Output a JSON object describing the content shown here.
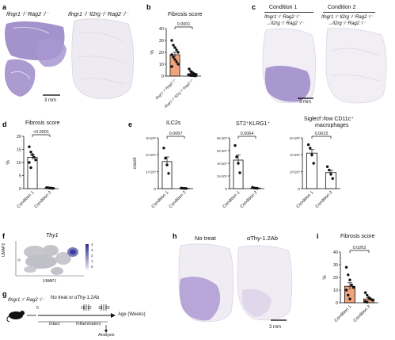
{
  "panels": {
    "a": {
      "letter": "a",
      "left_label": "Ifngr1⁻/⁻Rag2⁻/⁻",
      "right_label": "Ifngr1⁻/⁻Il2rg⁻/⁻Rag2⁻/⁻",
      "scale": "3 mm"
    },
    "b": {
      "letter": "b",
      "title": "Fibrosis score",
      "pvalue": "0.0001",
      "ylabel": "%",
      "xlabels": [
        "Ifngr1⁻/⁻Rag2⁻/⁻",
        "Ifngr1⁻/⁻Il2rg⁻/⁻Rag2⁻/⁻"
      ]
    },
    "c": {
      "letter": "c",
      "cond1": "Condition 1",
      "cond2": "Condition 2",
      "cond1_line1": "Ifngr1⁻/⁻Rag2⁻/⁻",
      "cond1_line2": "→Il2rg⁻/⁻Rag2⁻/⁻",
      "cond2_line1": "Ifngr1⁻/⁻Il2rg⁻/⁻Rag2⁻/⁻",
      "cond2_line2": "→Il2rg⁻/⁻Rag2⁻/⁻",
      "scale": "3 mm"
    },
    "d": {
      "letter": "d",
      "title": "Fibrosis score",
      "pvalue": "<0.0001",
      "ylabel": "%",
      "xlabels": [
        "Condition 1",
        "Condition 2"
      ]
    },
    "e": {
      "letter": "e",
      "ylabel": "count",
      "sub": [
        {
          "title": "ILC2s",
          "pvalue": "0.0067",
          "xlabels": [
            "Condition 1",
            "Condition 2"
          ]
        },
        {
          "title": "ST2⁺KLRG1⁺",
          "pvalue": "0.0064",
          "xlabels": [
            "Condition 1",
            "Condition 2"
          ]
        },
        {
          "title": "Siglecf⁻/lowCD11c⁺ macrophages",
          "title_line1": "Siglecf⁻⁄low CD11c⁺",
          "title_line2": "macrophages",
          "pvalue": "0.0615",
          "xlabels": [
            "Condition 1",
            "Condition 2"
          ]
        }
      ]
    },
    "f": {
      "letter": "f",
      "gene": "Thy1",
      "xaxis": "UMAP1",
      "yaxis": "UMAP2",
      "legend_ticks": [
        "4",
        "3",
        "2",
        "1",
        "0"
      ]
    },
    "g": {
      "letter": "g",
      "mouse_label": "Ifngr1⁻/⁻Rag2⁻/⁻",
      "treatment": "No treat or αThy-1.2Ab",
      "age_label": "Age (Weeks)",
      "intact": "Intact",
      "inflammatory": "Inflammatory",
      "analysis": "Analysis",
      "ticks": [
        "0",
        "10",
        "12",
        "18",
        "20"
      ]
    },
    "h": {
      "letter": "h",
      "left_label": "No treat",
      "right_label": "αThy-1.2Ab",
      "scale": "3 mm"
    },
    "i": {
      "letter": "i",
      "title": "Fibrosis score",
      "pvalue": "0.0262",
      "ylabel": "%",
      "xlabels": [
        "Condition 1",
        "Condition 2"
      ]
    }
  },
  "chart_data": [
    {
      "panel": "b",
      "type": "bar",
      "title": "Fibrosis score",
      "ylabel": "%",
      "ylim": [
        0,
        40
      ],
      "yticks": [
        0,
        10,
        20,
        30,
        40
      ],
      "categories": [
        "Ifngr1-/-Rag2-/-",
        "Ifngr1-/-Il2rg-/-Rag2-/-"
      ],
      "values": [
        18,
        2
      ],
      "points": [
        [
          30,
          26,
          24,
          22,
          20,
          18,
          16,
          14,
          12,
          10,
          8
        ],
        [
          6,
          4,
          3,
          2,
          1.5,
          1,
          0.5,
          0.5,
          0.3,
          0.2
        ]
      ],
      "pvalue": "0.0001",
      "bar_colors": [
        "#f0a47d",
        "#f0a47d"
      ]
    },
    {
      "panel": "d",
      "type": "bar",
      "title": "Fibrosis score",
      "ylabel": "%",
      "ylim": [
        0,
        20
      ],
      "yticks": [
        0,
        5,
        10,
        15,
        20
      ],
      "categories": [
        "Condition 1",
        "Condition 2"
      ],
      "values": [
        12,
        0.3
      ],
      "points": [
        [
          16,
          14,
          13,
          12,
          11,
          10,
          8
        ],
        [
          0.4,
          0.3,
          0.2,
          0.2,
          0.1
        ]
      ],
      "pvalue": "<0.0001",
      "bar_colors": [
        "#ffffff",
        "#ffffff"
      ]
    },
    {
      "panel": "e1",
      "type": "bar",
      "title": "ILC2s",
      "ylabel": "count",
      "ylim": [
        0,
        300000
      ],
      "ytick_labels": [
        "0",
        "1×10⁵",
        "2×10⁵",
        "3×10⁵"
      ],
      "yticks": [
        0,
        100000,
        200000,
        300000
      ],
      "categories": [
        "Condition 1",
        "Condition 2"
      ],
      "values": [
        160000,
        2000
      ],
      "points": [
        [
          240000,
          180000,
          140000,
          90000
        ],
        [
          3000,
          2000,
          1500,
          1000
        ]
      ],
      "pvalue": "0.0067"
    },
    {
      "panel": "e2",
      "type": "bar",
      "title": "ST2+KLRG1+",
      "ylim": [
        0,
        80000
      ],
      "ytick_labels": [
        "0",
        "2×10⁴",
        "4×10⁴",
        "6×10⁴",
        "8×10⁴"
      ],
      "yticks": [
        0,
        20000,
        40000,
        60000,
        80000
      ],
      "categories": [
        "Condition 1",
        "Condition 2"
      ],
      "values": [
        45000,
        1000
      ],
      "points": [
        [
          68000,
          50000,
          40000,
          25000
        ],
        [
          2000,
          1000,
          800,
          500
        ]
      ],
      "pvalue": "0.0064"
    },
    {
      "panel": "e3",
      "type": "bar",
      "title": "Siglecf-/low CD11c+ macrophages",
      "ylim": [
        0,
        600000
      ],
      "ytick_labels": [
        "0",
        "2×10⁵",
        "4×10⁵",
        "6×10⁵"
      ],
      "yticks": [
        0,
        200000,
        400000,
        600000
      ],
      "categories": [
        "Condition 1",
        "Condition 2"
      ],
      "values": [
        420000,
        190000
      ],
      "points": [
        [
          520000,
          480000,
          400000,
          300000
        ],
        [
          260000,
          220000,
          170000,
          120000
        ]
      ],
      "pvalue": "0.0615"
    },
    {
      "panel": "i",
      "type": "bar",
      "title": "Fibrosis score",
      "ylabel": "%",
      "ylim": [
        0,
        40
      ],
      "yticks": [
        0,
        10,
        20,
        30,
        40
      ],
      "categories": [
        "Condition 1",
        "Condition 2"
      ],
      "values": [
        13,
        3
      ],
      "points": [
        [
          28,
          22,
          18,
          14,
          12,
          10,
          6,
          3
        ],
        [
          8,
          6,
          4,
          3,
          2,
          1,
          0.5
        ]
      ],
      "pvalue": "0.0262",
      "bar_colors": [
        "#f0a47d",
        "#f0a47d"
      ]
    }
  ],
  "colors": {
    "bar_orange": "#f0a47d",
    "he_purple": "#8b7bbf",
    "light_tissue": "#ece8f0",
    "umap_gray": "#c8c8cc",
    "umap_blue": "#3a3aa0"
  }
}
